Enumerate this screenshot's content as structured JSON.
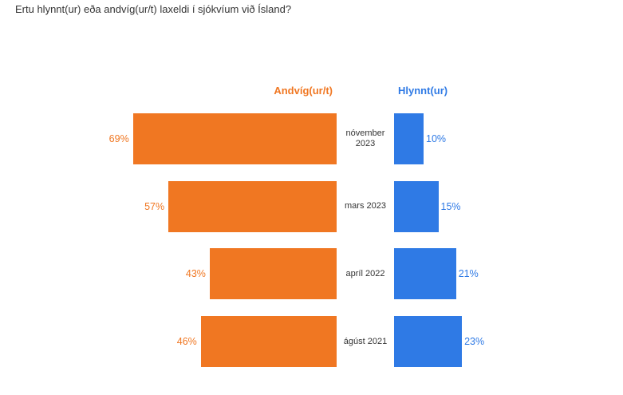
{
  "chart_data": {
    "type": "butterfly-bar",
    "title": "Ertu hlynnt(ur) eða andvíg(ur/t) laxeldi í sjókvíum við Ísland?",
    "categories": [
      "nóvember 2023",
      "mars 2023",
      "apríl 2022",
      "ágúst 2021"
    ],
    "series": [
      {
        "name": "Andvíg(ur/t)",
        "color": "#f07722",
        "values": [
          69,
          57,
          43,
          46
        ],
        "value_labels": [
          "69%",
          "57%",
          "43%",
          "46%"
        ]
      },
      {
        "name": "Hlynnt(ur)",
        "color": "#2f7ae5",
        "values": [
          10,
          15,
          21,
          23
        ],
        "value_labels": [
          "10%",
          "15%",
          "21%",
          "23%"
        ]
      }
    ]
  }
}
